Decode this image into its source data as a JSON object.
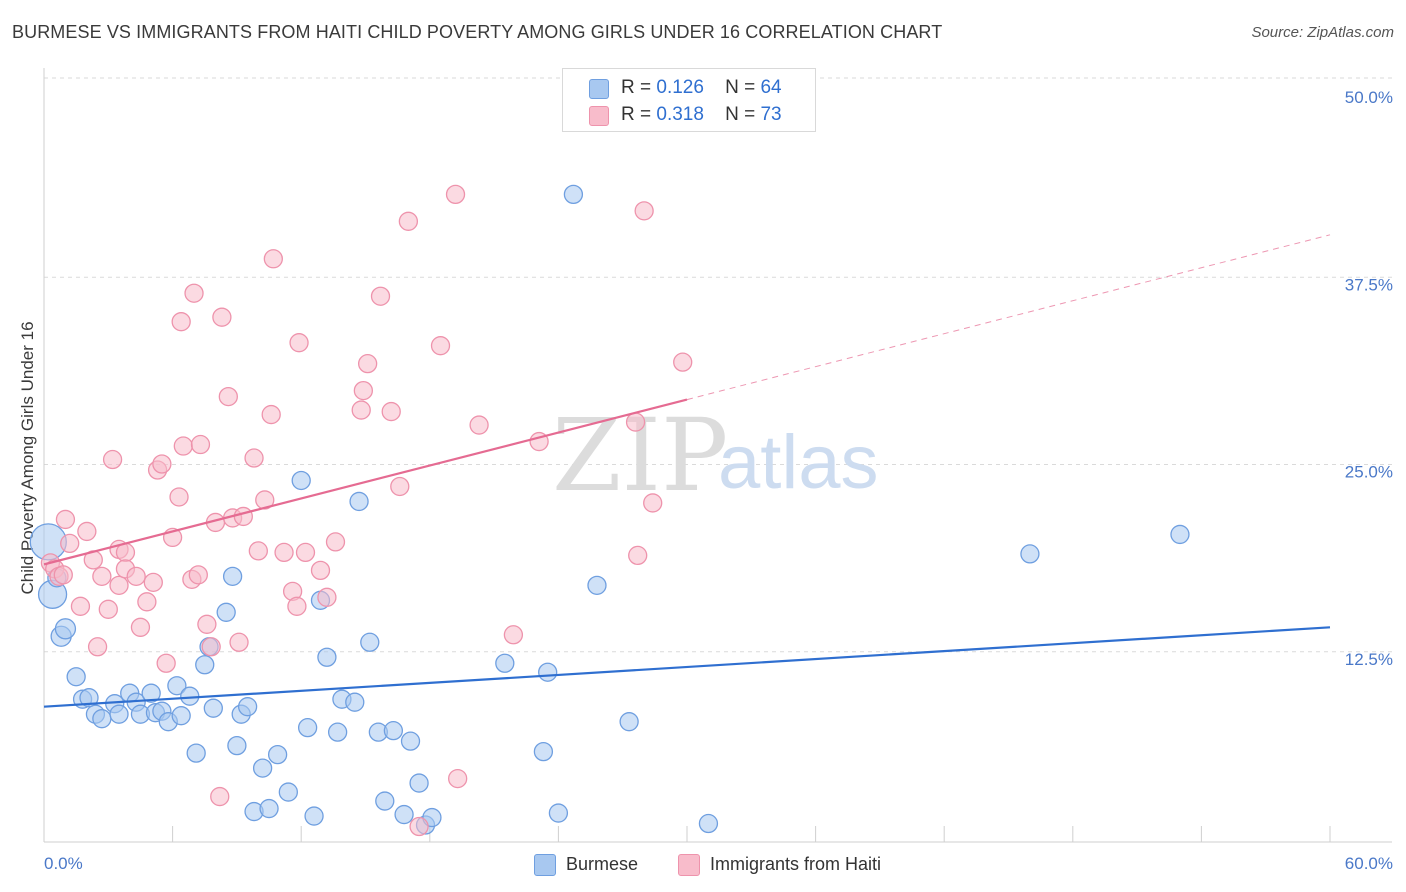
{
  "title": "BURMESE VS IMMIGRANTS FROM HAITI CHILD POVERTY AMONG GIRLS UNDER 16 CORRELATION CHART",
  "source": "Source: ZipAtlas.com",
  "watermark": {
    "zip": "ZIP",
    "atlas": "atlas"
  },
  "legend": {
    "burmese": {
      "r_label": "R =",
      "r_value": "0.126",
      "n_label": "N =",
      "n_value": "64"
    },
    "haiti": {
      "r_label": "R =",
      "r_value": "0.318",
      "n_label": "N =",
      "n_value": "73"
    }
  },
  "bottom_legend": {
    "burmese": "Burmese",
    "haiti": "Immigrants from Haiti"
  },
  "colors": {
    "burmese_fill": "#a8c8f0",
    "burmese_stroke": "#6f9fe0",
    "burmese_line": "#2f6fd0",
    "haiti_fill": "#f8bccb",
    "haiti_stroke": "#ee93ac",
    "haiti_line": "#e56b92",
    "tick": "#4a78c8",
    "grid": "#dadada"
  },
  "chart_data": {
    "type": "scatter",
    "title": "BURMESE VS IMMIGRANTS FROM HAITI CHILD POVERTY AMONG GIRLS UNDER 16 CORRELATION CHART",
    "xlabel": "",
    "ylabel": "Child Poverty Among Girls Under 16",
    "xlim": [
      0,
      60
    ],
    "ylim": [
      0,
      50
    ],
    "x_tick_labels": [
      {
        "value": 0,
        "label": "0.0%"
      },
      {
        "value": 60,
        "label": "60.0%"
      }
    ],
    "y_tick_labels": [
      {
        "value": 12.5,
        "label": "12.5%"
      },
      {
        "value": 25,
        "label": "25.0%"
      },
      {
        "value": 37.5,
        "label": "37.5%"
      },
      {
        "value": 50,
        "label": "50.0%"
      }
    ],
    "grid": true,
    "legend_position": "top-center",
    "series": [
      {
        "name": "Burmese",
        "r": 0.126,
        "n": 64,
        "trend": {
          "x": [
            0,
            60
          ],
          "y": [
            9.3,
            14.6
          ],
          "dashed_from": null
        },
        "points": [
          [
            0.2,
            20.3,
            18
          ],
          [
            0.4,
            16.8,
            14
          ],
          [
            0.8,
            14.0,
            10
          ],
          [
            1.0,
            14.5,
            10
          ],
          [
            1.5,
            11.3,
            9
          ],
          [
            1.8,
            9.8,
            9
          ],
          [
            2.1,
            9.9,
            9
          ],
          [
            2.4,
            8.8,
            9
          ],
          [
            2.7,
            8.5,
            9
          ],
          [
            3.3,
            9.5,
            9
          ],
          [
            3.5,
            8.8,
            9
          ],
          [
            4.0,
            10.2,
            9
          ],
          [
            4.3,
            9.6,
            9
          ],
          [
            4.5,
            8.8,
            9
          ],
          [
            5.0,
            10.2,
            9
          ],
          [
            5.2,
            8.9,
            9
          ],
          [
            5.5,
            9.0,
            9
          ],
          [
            5.8,
            8.3,
            9
          ],
          [
            6.2,
            10.7,
            9
          ],
          [
            6.4,
            8.7,
            9
          ],
          [
            6.8,
            10.0,
            9
          ],
          [
            7.1,
            6.2,
            9
          ],
          [
            7.5,
            12.1,
            9
          ],
          [
            7.7,
            13.3,
            9
          ],
          [
            7.9,
            9.2,
            9
          ],
          [
            8.5,
            15.6,
            9
          ],
          [
            8.8,
            18.0,
            9
          ],
          [
            9.0,
            6.7,
            9
          ],
          [
            9.2,
            8.8,
            9
          ],
          [
            9.5,
            9.3,
            9
          ],
          [
            9.8,
            2.3,
            9
          ],
          [
            10.2,
            5.2,
            9
          ],
          [
            10.5,
            2.5,
            9
          ],
          [
            10.9,
            6.1,
            9
          ],
          [
            11.4,
            3.6,
            9
          ],
          [
            12.0,
            24.4,
            9
          ],
          [
            12.3,
            7.9,
            9
          ],
          [
            12.6,
            2.0,
            9
          ],
          [
            12.9,
            16.4,
            9
          ],
          [
            13.2,
            12.6,
            9
          ],
          [
            13.7,
            7.6,
            9
          ],
          [
            13.9,
            9.8,
            9
          ],
          [
            14.5,
            9.6,
            9
          ],
          [
            14.7,
            23.0,
            9
          ],
          [
            15.2,
            13.6,
            9
          ],
          [
            15.6,
            7.6,
            9
          ],
          [
            15.9,
            3.0,
            9
          ],
          [
            16.3,
            7.7,
            9
          ],
          [
            16.8,
            2.1,
            9
          ],
          [
            17.1,
            7.0,
            9
          ],
          [
            17.5,
            4.2,
            9
          ],
          [
            17.8,
            1.4,
            9
          ],
          [
            18.1,
            1.9,
            9
          ],
          [
            21.5,
            12.2,
            9
          ],
          [
            23.3,
            6.3,
            9
          ],
          [
            23.5,
            11.6,
            9
          ],
          [
            24.0,
            2.2,
            9
          ],
          [
            24.7,
            43.5,
            9
          ],
          [
            25.8,
            17.4,
            9
          ],
          [
            27.3,
            8.3,
            9
          ],
          [
            31.0,
            1.5,
            9
          ],
          [
            46.0,
            19.5,
            9
          ],
          [
            53.0,
            20.8,
            9
          ],
          [
            0.6,
            17.9,
            9
          ]
        ]
      },
      {
        "name": "Immigrants from Haiti",
        "r": 0.318,
        "n": 73,
        "trend": {
          "x": [
            0,
            60
          ],
          "y": [
            18.8,
            40.8
          ],
          "dashed_from": 30.0
        },
        "points": [
          [
            0.3,
            18.9,
            9
          ],
          [
            0.5,
            18.5,
            9
          ],
          [
            0.7,
            18.0,
            9
          ],
          [
            1.0,
            21.8,
            9
          ],
          [
            1.2,
            20.2,
            9
          ],
          [
            1.7,
            16.0,
            9
          ],
          [
            2.0,
            21.0,
            9
          ],
          [
            2.3,
            19.1,
            9
          ],
          [
            2.5,
            13.3,
            9
          ],
          [
            2.7,
            18.0,
            9
          ],
          [
            3.0,
            15.8,
            9
          ],
          [
            3.2,
            25.8,
            9
          ],
          [
            3.5,
            19.8,
            9
          ],
          [
            3.8,
            19.6,
            9
          ],
          [
            3.5,
            17.4,
            9
          ],
          [
            3.8,
            18.5,
            9
          ],
          [
            4.3,
            18.0,
            9
          ],
          [
            4.5,
            14.6,
            9
          ],
          [
            4.8,
            16.3,
            9
          ],
          [
            5.1,
            17.6,
            9
          ],
          [
            5.3,
            25.1,
            9
          ],
          [
            5.5,
            25.5,
            9
          ],
          [
            5.7,
            12.2,
            9
          ],
          [
            6.0,
            20.6,
            9
          ],
          [
            6.3,
            23.3,
            9
          ],
          [
            6.5,
            26.7,
            9
          ],
          [
            6.4,
            35.0,
            9
          ],
          [
            6.9,
            17.8,
            9
          ],
          [
            7.2,
            18.1,
            9
          ],
          [
            7.0,
            36.9,
            9
          ],
          [
            7.3,
            26.8,
            9
          ],
          [
            7.6,
            14.8,
            9
          ],
          [
            7.8,
            13.3,
            9
          ],
          [
            8.0,
            21.6,
            9
          ],
          [
            8.2,
            3.3,
            9
          ],
          [
            8.3,
            35.3,
            9
          ],
          [
            8.6,
            30.0,
            9
          ],
          [
            8.8,
            21.9,
            9
          ],
          [
            9.1,
            13.6,
            9
          ],
          [
            9.3,
            22.0,
            9
          ],
          [
            9.8,
            25.9,
            9
          ],
          [
            10.0,
            19.7,
            9
          ],
          [
            10.3,
            23.1,
            9
          ],
          [
            10.6,
            28.8,
            9
          ],
          [
            10.7,
            39.2,
            9
          ],
          [
            11.2,
            19.6,
            9
          ],
          [
            11.6,
            17.0,
            9
          ],
          [
            11.8,
            16.0,
            9
          ],
          [
            11.9,
            33.6,
            9
          ],
          [
            12.2,
            19.6,
            9
          ],
          [
            12.9,
            18.4,
            9
          ],
          [
            13.2,
            16.6,
            9
          ],
          [
            13.6,
            20.3,
            9
          ],
          [
            14.8,
            29.1,
            9
          ],
          [
            14.9,
            30.4,
            9
          ],
          [
            15.1,
            32.2,
            9
          ],
          [
            15.7,
            36.7,
            9
          ],
          [
            16.2,
            29.0,
            9
          ],
          [
            16.6,
            24.0,
            9
          ],
          [
            17.0,
            41.7,
            9
          ],
          [
            17.5,
            1.3,
            9
          ],
          [
            18.5,
            33.4,
            9
          ],
          [
            19.2,
            43.5,
            9
          ],
          [
            19.3,
            4.5,
            9
          ],
          [
            20.3,
            28.1,
            9
          ],
          [
            21.9,
            14.1,
            9
          ],
          [
            23.1,
            27.0,
            9
          ],
          [
            27.7,
            19.4,
            9
          ],
          [
            28.0,
            42.4,
            9
          ],
          [
            28.4,
            22.9,
            9
          ],
          [
            29.8,
            32.3,
            9
          ],
          [
            27.6,
            28.3,
            9
          ],
          [
            0.9,
            18.1,
            9
          ]
        ]
      }
    ]
  }
}
